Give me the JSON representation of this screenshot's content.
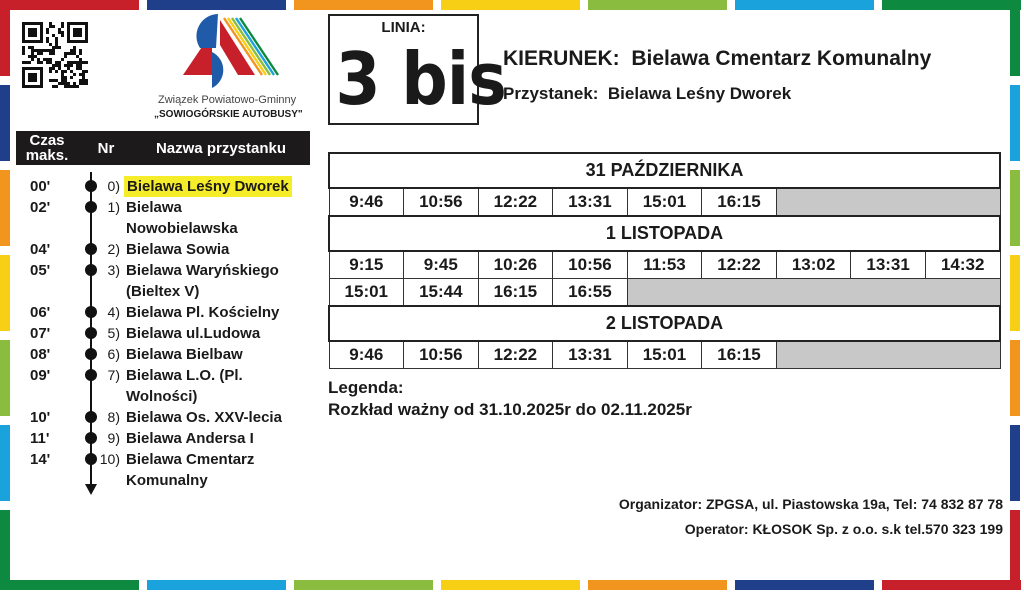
{
  "colors": {
    "red": "#c8202a",
    "dark_blue": "#1f3f8a",
    "orange": "#f2951f",
    "yellow": "#f7cf15",
    "green": "#8abd3f",
    "light_blue": "#1aa2dc",
    "dark_green": "#0d8a3f",
    "highlight": "#f5ec2a"
  },
  "logo": {
    "line1": "Związek Powiatowo-Gminny",
    "line2": "„SOWIOGÓRSKIE AUTOBUSY\""
  },
  "line": {
    "label": "LINIA:",
    "number": "3 bis"
  },
  "direction": {
    "label": "KIERUNEK:",
    "value": "Bielawa Cmentarz Komunalny"
  },
  "stop": {
    "label": "Przystanek:",
    "value": "Bielawa Leśny Dworek"
  },
  "route_header": {
    "time": "Czas maks.",
    "nr": "Nr",
    "name": "Nazwa przystanku"
  },
  "stops": [
    {
      "time": "00'",
      "nr": "0)",
      "name": "Bielawa Leśny Dworek",
      "current": true
    },
    {
      "time": "02'",
      "nr": "1)",
      "name": "Bielawa",
      "name2": "Nowobielawska"
    },
    {
      "time": "04'",
      "nr": "2)",
      "name": "Bielawa Sowia"
    },
    {
      "time": "05'",
      "nr": "3)",
      "name": "Bielawa Waryńskiego",
      "name2": "(Bieltex V)"
    },
    {
      "time": "06'",
      "nr": "4)",
      "name": "Bielawa Pl. Kościelny"
    },
    {
      "time": "07'",
      "nr": "5)",
      "name": "Bielawa ul.Ludowa"
    },
    {
      "time": "08'",
      "nr": "6)",
      "name": "Bielawa Bielbaw"
    },
    {
      "time": "09'",
      "nr": "7)",
      "name": "Bielawa L.O. (Pl.",
      "name2": "Wolności)"
    },
    {
      "time": "10'",
      "nr": "8)",
      "name": "Bielawa Os. XXV-lecia"
    },
    {
      "time": "11'",
      "nr": "9)",
      "name": "Bielawa Andersa  I"
    },
    {
      "time": "14'",
      "nr": "10)",
      "name": "Bielawa Cmentarz",
      "name2": "Komunalny"
    }
  ],
  "timetable": [
    {
      "day": "31 PAŹDZIERNIKA",
      "rows": [
        [
          "9:46",
          "10:56",
          "12:22",
          "13:31",
          "15:01",
          "16:15"
        ]
      ]
    },
    {
      "day": "1 LISTOPADA",
      "rows": [
        [
          "9:15",
          "9:45",
          "10:26",
          "10:56",
          "11:53",
          "12:22",
          "13:02",
          "13:31",
          "14:32"
        ],
        [
          "15:01",
          "15:44",
          "16:15",
          "16:55"
        ]
      ]
    },
    {
      "day": "2 LISTOPADA",
      "rows": [
        [
          "9:46",
          "10:56",
          "12:22",
          "13:31",
          "15:01",
          "16:15"
        ]
      ]
    }
  ],
  "legend": {
    "title": "Legenda:",
    "validity": "Rozkład ważny od 31.10.2025r do 02.11.2025r"
  },
  "footer": {
    "organizer": "Organizator: ZPGSA, ul. Piastowska 19a, Tel: 74 832 87 78",
    "operator": "Operator: KŁOSOK Sp. z o.o. s.k tel.570 323 199"
  }
}
